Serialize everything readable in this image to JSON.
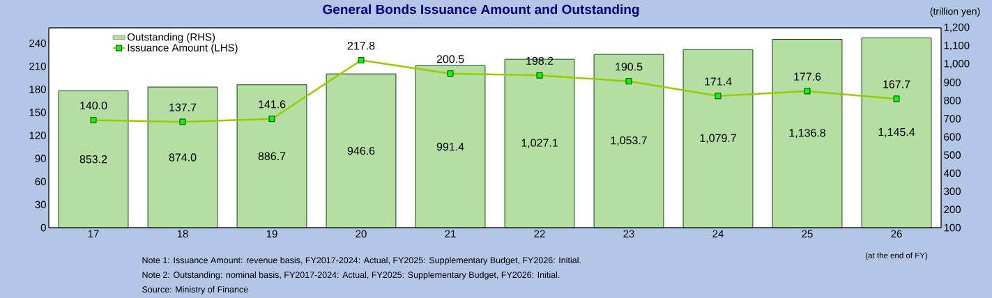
{
  "chart_data": {
    "type": "bar",
    "title": "General Bonds Issuance Amount and Outstanding",
    "y2label": "(trillion yen)",
    "categories": [
      "17",
      "18",
      "19",
      "20",
      "21",
      "22",
      "23",
      "24",
      "25",
      "26"
    ],
    "series": [
      {
        "name": "Outstanding (RHS)",
        "axis": "y2",
        "color": "#b4dea2",
        "values": [
          853.2,
          874.0,
          886.7,
          946.6,
          991.4,
          1027.1,
          1053.7,
          1079.7,
          1136.8,
          1145.4
        ],
        "value_labels": [
          "853.2",
          "874.0",
          "886.7",
          "946.6",
          "991.4",
          "1,027.1",
          "1,053.7",
          "1,079.7",
          "1,136.8",
          "1,145.4"
        ]
      },
      {
        "name": "Issuance Amount (LHS)",
        "type": "line",
        "color": "#99cc00",
        "values": [
          140.0,
          137.7,
          141.6,
          217.8,
          200.5,
          198.2,
          190.5,
          171.4,
          177.6,
          167.7
        ],
        "value_labels": [
          "140.0",
          "137.7",
          "141.6",
          "217.8",
          "200.5",
          "198.2",
          "190.5",
          "171.4",
          "177.6",
          "167.7"
        ]
      }
    ],
    "ylim": [
      0,
      260
    ],
    "yticks": [
      0,
      30,
      60,
      90,
      120,
      150,
      180,
      210,
      240
    ],
    "y2lim": [
      100,
      1200
    ],
    "y2ticks": [
      100,
      200,
      300,
      400,
      500,
      600,
      700,
      800,
      900,
      {
        "value": 1000,
        "label": "1,000"
      },
      {
        "value": 1100,
        "label": "1,100"
      },
      {
        "value": 1200,
        "label": "1,200"
      }
    ],
    "marker": "square",
    "legend": "top left",
    "annotations": [
      "(at the end of FY)",
      "Note 1: Issuance Amount: revenue basis, FY2017-2024: Actual, FY2025: Supplementary Budget, FY2026: Initial.",
      "Note 2: Outstanding: nominal basis, FY2017-2024: Actual,  FY2025: Supplementary Budget, FY2026: Initial.",
      "Source: Ministry of Finance"
    ]
  }
}
